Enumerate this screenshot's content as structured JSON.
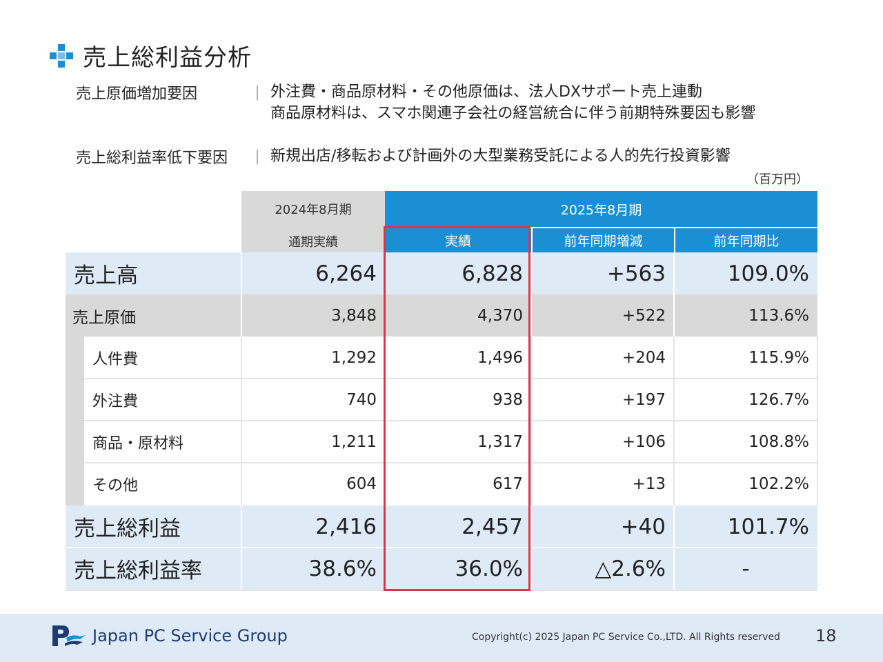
{
  "title": "売上総利益分析",
  "factors": [
    {
      "label": "売上原価増加要因",
      "lines": [
        "外注費・商品原材料・その他原価は、法人DXサポート売上連動",
        "商品原材料は、スマホ関連子会社の経営統合に伴う前期特殊要因も影響"
      ]
    },
    {
      "label": "売上総利益率低下要因",
      "lines": [
        "新規出店/移転および計画外の大型業務受託による人的先行投資影響"
      ]
    }
  ],
  "separator": "｜",
  "unit": "（百万円）",
  "table": {
    "header_prev_period": "2024年8月期",
    "header_prev_sub": "通期実績",
    "header_curr_period": "2025年8月期",
    "col_actual": "実績",
    "col_yoy_change": "前年同期増減",
    "col_yoy_ratio": "前年同期比",
    "rows": [
      {
        "label": "売上高",
        "prev": "6,264",
        "actual": "6,828",
        "change": "+563",
        "ratio": "109.0%"
      },
      {
        "label": "売上原価",
        "prev": "3,848",
        "actual": "4,370",
        "change": "+522",
        "ratio": "113.6%"
      },
      {
        "label": "人件費",
        "prev": "1,292",
        "actual": "1,496",
        "change": "+204",
        "ratio": "115.9%"
      },
      {
        "label": "外注費",
        "prev": "740",
        "actual": "938",
        "change": "+197",
        "ratio": "126.7%"
      },
      {
        "label": "商品・原材料",
        "prev": "1,211",
        "actual": "1,317",
        "change": "+106",
        "ratio": "108.8%"
      },
      {
        "label": "その他",
        "prev": "604",
        "actual": "617",
        "change": "+13",
        "ratio": "102.2%"
      },
      {
        "label": "売上総利益",
        "prev": "2,416",
        "actual": "2,457",
        "change": "+40",
        "ratio": "101.7%"
      },
      {
        "label": "売上総利益率",
        "prev": "38.6%",
        "actual": "36.0%",
        "change": "△2.6%",
        "ratio": "-"
      }
    ]
  },
  "footer": {
    "company": "Japan PC Service Group",
    "copyright": "Copyright(c) 2025 Japan PC Service Co.,LTD. All Rights reserved",
    "page_number": "18"
  },
  "colors": {
    "accent_blue": "#1b8fd3",
    "light_blue": "#deeaf6",
    "header_gray": "#d9d9d9",
    "highlight_red": "#e0324f",
    "logo_navy": "#1f3b70"
  },
  "icons": {
    "title_icon": "blue-cross-squares-icon",
    "logo_icon": "jpcs-logo-icon"
  }
}
